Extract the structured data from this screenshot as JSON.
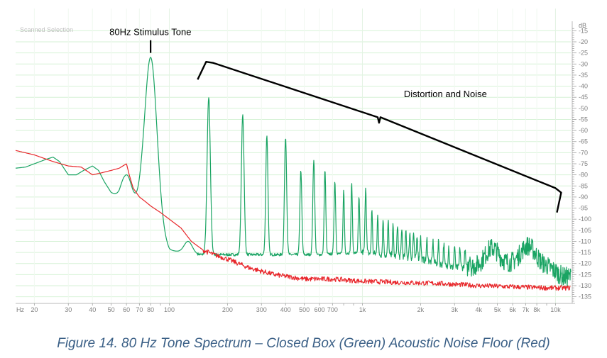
{
  "chart_data": {
    "type": "line",
    "title": "",
    "selection_label": "Scanned Selection",
    "xlabel": "",
    "ylabel": "",
    "x_unit_label": "Hz",
    "y_unit_label": "dB",
    "x_scale": "log",
    "xlim": [
      16,
      12000
    ],
    "ylim": [
      -138,
      -12
    ],
    "grid": true,
    "legend": "none",
    "x_tick_labels": [
      {
        "value": 20,
        "label": "20"
      },
      {
        "value": 30,
        "label": "30"
      },
      {
        "value": 40,
        "label": "40"
      },
      {
        "value": 50,
        "label": "50"
      },
      {
        "value": 60,
        "label": "60"
      },
      {
        "value": 70,
        "label": "70"
      },
      {
        "value": 80,
        "label": "80"
      },
      {
        "value": 100,
        "label": "100"
      },
      {
        "value": 200,
        "label": "200"
      },
      {
        "value": 300,
        "label": "300"
      },
      {
        "value": 400,
        "label": "400"
      },
      {
        "value": 500,
        "label": "500"
      },
      {
        "value": 600,
        "label": "600"
      },
      {
        "value": 700,
        "label": "700"
      },
      {
        "value": 1000,
        "label": "1k"
      },
      {
        "value": 2000,
        "label": "2k"
      },
      {
        "value": 3000,
        "label": "3k"
      },
      {
        "value": 4000,
        "label": "4k"
      },
      {
        "value": 5000,
        "label": "5k"
      },
      {
        "value": 6000,
        "label": "6k"
      },
      {
        "value": 7000,
        "label": "7k"
      },
      {
        "value": 8000,
        "label": "8k"
      },
      {
        "value": 10000,
        "label": "10k"
      }
    ],
    "y_ticks": [
      -15,
      -20,
      -25,
      -30,
      -35,
      -40,
      -45,
      -50,
      -55,
      -60,
      -65,
      -70,
      -75,
      -80,
      -85,
      -90,
      -95,
      -100,
      -105,
      -110,
      -115,
      -120,
      -125,
      -130,
      -135
    ],
    "series": [
      {
        "color": "#1aa463",
        "baseline": [
          [
            16,
            -77
          ],
          [
            18,
            -76.5
          ],
          [
            20,
            -75
          ],
          [
            23,
            -73
          ],
          [
            25,
            -72
          ],
          [
            27,
            -74
          ],
          [
            30,
            -80
          ],
          [
            33,
            -80
          ],
          [
            36,
            -78
          ],
          [
            40,
            -76
          ],
          [
            43,
            -78
          ],
          [
            46,
            -83
          ],
          [
            50,
            -88
          ],
          [
            55,
            -90
          ],
          [
            58,
            -88
          ],
          [
            62,
            -92
          ],
          [
            68,
            -94
          ],
          [
            72,
            -95
          ],
          [
            100,
            -114
          ],
          [
            140,
            -116
          ],
          [
            300,
            -116
          ],
          [
            600,
            -116
          ],
          [
            1000,
            -115
          ],
          [
            2000,
            -118
          ],
          [
            3000,
            -122
          ],
          [
            4500,
            -121
          ],
          [
            7000,
            -119
          ],
          [
            9000,
            -121
          ],
          [
            11000,
            -126
          ]
        ],
        "peaks": [
          {
            "x": 80,
            "y": -27,
            "w": 0.045,
            "base": 80
          },
          {
            "x": 160,
            "y": -45,
            "w": 0.012
          },
          {
            "x": 240,
            "y": -53,
            "w": 0.01
          },
          {
            "x": 320,
            "y": -62,
            "w": 0.008
          },
          {
            "x": 400,
            "y": -63,
            "w": 0.008
          },
          {
            "x": 480,
            "y": -78,
            "w": 0.007
          },
          {
            "x": 560,
            "y": -73,
            "w": 0.007
          },
          {
            "x": 640,
            "y": -78,
            "w": 0.006
          },
          {
            "x": 720,
            "y": -83,
            "w": 0.006
          },
          {
            "x": 800,
            "y": -87,
            "w": 0.005
          },
          {
            "x": 880,
            "y": -84,
            "w": 0.005
          },
          {
            "x": 960,
            "y": -90,
            "w": 0.005
          },
          {
            "x": 1040,
            "y": -85,
            "w": 0.005
          },
          {
            "x": 1120,
            "y": -95,
            "w": 0.004
          },
          {
            "x": 1200,
            "y": -97,
            "w": 0.004
          },
          {
            "x": 1280,
            "y": -100,
            "w": 0.004
          },
          {
            "x": 1360,
            "y": -101,
            "w": 0.004
          },
          {
            "x": 1440,
            "y": -103,
            "w": 0.004
          },
          {
            "x": 1520,
            "y": -102,
            "w": 0.004
          },
          {
            "x": 1600,
            "y": -104,
            "w": 0.004
          },
          {
            "x": 1680,
            "y": -105,
            "w": 0.004
          },
          {
            "x": 1760,
            "y": -106,
            "w": 0.004
          },
          {
            "x": 1840,
            "y": -106,
            "w": 0.004
          },
          {
            "x": 1920,
            "y": -107,
            "w": 0.004
          },
          {
            "x": 2000,
            "y": -108,
            "w": 0.004
          },
          {
            "x": 2160,
            "y": -109,
            "w": 0.004
          },
          {
            "x": 2320,
            "y": -110,
            "w": 0.004
          },
          {
            "x": 2480,
            "y": -110,
            "w": 0.004
          },
          {
            "x": 2640,
            "y": -111,
            "w": 0.004
          },
          {
            "x": 2800,
            "y": -112,
            "w": 0.004
          },
          {
            "x": 3000,
            "y": -112,
            "w": 0.004
          },
          {
            "x": 3200,
            "y": -113,
            "w": 0.004
          },
          {
            "x": 3400,
            "y": -114,
            "w": 0.004
          },
          {
            "x": 3600,
            "y": -115,
            "w": 0.004
          }
        ],
        "bumps": [
          {
            "x": 125,
            "y": -110,
            "w": 0.03
          },
          {
            "x": 60,
            "y": -80,
            "w": 0.035
          },
          {
            "x": 4700,
            "y": -113,
            "w": 0.05
          },
          {
            "x": 7200,
            "y": -112,
            "w": 0.05
          }
        ]
      },
      {
        "color": "#e8262a",
        "points": [
          [
            16,
            -69
          ],
          [
            20,
            -71
          ],
          [
            25,
            -74
          ],
          [
            30,
            -76
          ],
          [
            35,
            -76.5
          ],
          [
            40,
            -80
          ],
          [
            45,
            -79
          ],
          [
            50,
            -78
          ],
          [
            55,
            -77
          ],
          [
            60,
            -75
          ],
          [
            62,
            -80
          ],
          [
            65,
            -86
          ],
          [
            70,
            -90
          ],
          [
            75,
            -92
          ],
          [
            80,
            -94
          ],
          [
            90,
            -97
          ],
          [
            100,
            -100
          ],
          [
            115,
            -104
          ],
          [
            130,
            -110
          ],
          [
            150,
            -114
          ],
          [
            170,
            -116
          ],
          [
            200,
            -118
          ],
          [
            260,
            -122
          ],
          [
            350,
            -125
          ],
          [
            500,
            -127
          ],
          [
            700,
            -127
          ],
          [
            1000,
            -128
          ],
          [
            1500,
            -128.5
          ],
          [
            2500,
            -129
          ],
          [
            4000,
            -130
          ],
          [
            6000,
            -130.5
          ],
          [
            9000,
            -131
          ],
          [
            11000,
            -131
          ]
        ]
      }
    ],
    "annotations": [
      {
        "text": "80Hz Stimulus Tone",
        "x": 80,
        "y": -17
      },
      {
        "text": "Distortion and Noise",
        "x": 2300,
        "y": -45
      }
    ]
  },
  "caption": "Figure 14. 80 Hz Tone Spectrum – Closed Box (Green) Acoustic Noise Floor (Red)"
}
